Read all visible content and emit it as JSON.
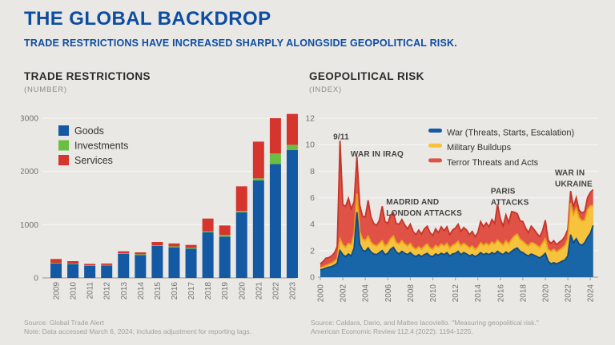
{
  "page": {
    "title": "THE GLOBAL BACKDROP",
    "subtitle": "TRADE RESTRICTIONS HAVE INCREASED SHARPLY ALONGSIDE GEOPOLITICAL RISK."
  },
  "colors": {
    "background": "#e9e8e5",
    "title_blue": "#0d4da1",
    "heading": "#2b2a28",
    "sublabel": "#8f8d89",
    "axis_text": "#75736f",
    "axis_line": "#a9a7a2",
    "gridline": "#f3f2ef",
    "legend_text": "#35332f",
    "annotation": "#45433f",
    "footer": "#a3a09b",
    "goods_blue": "#1459a3",
    "investments_green": "#6cbe42",
    "services_red": "#d5352d",
    "war_fill": "#1866a8",
    "war_stroke": "#0e4b84",
    "military_fill": "#f7c23c",
    "military_stroke": "#e8a41d",
    "terror_fill": "#e05146",
    "terror_stroke": "#c5352a"
  },
  "left_panel": {
    "heading": "TRADE RESTRICTIONS",
    "unit_label": "(NUMBER)",
    "source_line1": "Source: Global Trade Alert",
    "source_line2": "Note: Data accessed March 6, 2024; includes adjustment for reporting lags."
  },
  "right_panel": {
    "heading": "GEOPOLITICAL RISK",
    "unit_label": "(INDEX)",
    "source_line1": "Source: Caldara, Dario, and Matteo Iacoviello. \"Measuring geopolitical risk.\"",
    "source_line2": "American Economic Review 112.4 (2022): 1194-1225."
  },
  "chart_data": [
    {
      "type": "bar",
      "stacked": true,
      "title": "TRADE RESTRICTIONS",
      "xlabel": "",
      "ylabel": "NUMBER",
      "ylim": [
        0,
        3000
      ],
      "yticks": [
        0,
        1000,
        2000,
        3000
      ],
      "grid": true,
      "legend_position": "top-left",
      "categories": [
        "2009",
        "2010",
        "2011",
        "2012",
        "2013",
        "2014",
        "2015",
        "2016",
        "2017",
        "2018",
        "2019",
        "2020",
        "2021",
        "2022",
        "2023"
      ],
      "series": [
        {
          "name": "Goods",
          "color": "#1459a3",
          "values": [
            270,
            260,
            230,
            235,
            450,
            430,
            600,
            575,
            550,
            855,
            775,
            1230,
            1830,
            2140,
            2400
          ]
        },
        {
          "name": "Investments",
          "color": "#6cbe42",
          "values": [
            15,
            10,
            8,
            8,
            15,
            15,
            15,
            18,
            15,
            20,
            35,
            30,
            40,
            200,
            100
          ]
        },
        {
          "name": "Services",
          "color": "#d5352d",
          "values": [
            70,
            45,
            25,
            28,
            35,
            35,
            60,
            55,
            55,
            240,
            175,
            460,
            690,
            660,
            580
          ]
        }
      ]
    },
    {
      "type": "area",
      "stacked": true,
      "title": "GEOPOLITICAL RISK",
      "xlabel": "",
      "ylabel": "INDEX",
      "ylim": [
        0,
        12
      ],
      "yticks": [
        0,
        2,
        4,
        6,
        8,
        10,
        12
      ],
      "xticks": [
        2000,
        2002,
        2004,
        2006,
        2008,
        2010,
        2012,
        2014,
        2016,
        2018,
        2020,
        2022,
        2024
      ],
      "grid": true,
      "legend_position": "top-right",
      "x_range": {
        "start": 2000,
        "step": 0.25,
        "count": 98,
        "end": 2024.25
      },
      "series": [
        {
          "name": "War (Threats, Starts, Escalation)",
          "fill": "#1866a8",
          "stroke": "#0e4b84",
          "values": [
            0.55,
            0.6,
            0.68,
            0.75,
            0.8,
            0.9,
            1.05,
            2.0,
            1.7,
            1.55,
            1.75,
            1.6,
            2.2,
            4.9,
            2.5,
            2.05,
            1.95,
            2.2,
            1.9,
            1.75,
            1.7,
            1.85,
            2.0,
            1.7,
            1.8,
            2.1,
            2.25,
            1.9,
            1.75,
            1.95,
            1.8,
            1.7,
            1.85,
            1.65,
            1.55,
            1.7,
            1.55,
            1.7,
            1.8,
            1.6,
            1.55,
            1.75,
            1.65,
            1.8,
            1.7,
            1.85,
            1.6,
            1.75,
            1.8,
            1.95,
            1.7,
            1.85,
            1.75,
            1.6,
            1.7,
            1.55,
            1.65,
            1.85,
            1.7,
            1.8,
            1.7,
            1.85,
            1.75,
            1.95,
            1.8,
            1.7,
            1.9,
            1.75,
            1.95,
            2.1,
            2.2,
            1.95,
            1.85,
            1.7,
            1.6,
            1.75,
            1.65,
            1.55,
            1.45,
            1.6,
            1.8,
            1.2,
            1.0,
            1.1,
            1.0,
            1.1,
            1.2,
            1.3,
            1.6,
            3.2,
            2.6,
            2.9,
            2.5,
            2.4,
            2.6,
            3.0,
            3.3,
            3.9
          ]
        },
        {
          "name": "Military Buildups",
          "fill": "#f7c23c",
          "stroke": "#e8a41d",
          "values": [
            0.15,
            0.18,
            0.2,
            0.22,
            0.25,
            0.28,
            0.35,
            0.9,
            0.75,
            0.7,
            0.8,
            0.85,
            1.1,
            1.4,
            0.95,
            0.85,
            0.8,
            0.9,
            0.75,
            0.7,
            0.65,
            0.7,
            0.75,
            0.65,
            0.7,
            0.8,
            0.85,
            0.7,
            0.75,
            0.8,
            0.7,
            0.65,
            0.7,
            0.6,
            0.55,
            0.6,
            0.55,
            0.65,
            0.7,
            0.6,
            0.55,
            0.65,
            0.6,
            0.7,
            0.65,
            0.7,
            0.6,
            0.65,
            0.7,
            0.75,
            0.65,
            0.7,
            0.65,
            0.6,
            0.65,
            0.55,
            0.6,
            0.75,
            0.7,
            0.75,
            0.7,
            0.8,
            0.75,
            0.85,
            0.8,
            0.7,
            0.85,
            0.75,
            0.9,
            1.0,
            1.05,
            0.9,
            0.85,
            0.8,
            0.75,
            0.85,
            0.9,
            0.85,
            0.8,
            0.95,
            1.1,
            0.9,
            0.95,
            1.0,
            0.9,
            0.95,
            1.0,
            1.1,
            1.3,
            2.4,
            2.1,
            2.3,
            2.0,
            1.85,
            1.7,
            2.1,
            2.1,
            1.5
          ]
        },
        {
          "name": "Terror Threats and Acts",
          "fill": "#e05146",
          "stroke": "#c5352a",
          "values": [
            0.3,
            0.4,
            0.55,
            0.5,
            0.55,
            0.65,
            0.9,
            7.4,
            3.0,
            3.1,
            3.4,
            2.7,
            2.4,
            2.8,
            2.0,
            1.7,
            1.8,
            2.7,
            1.9,
            1.6,
            1.55,
            1.75,
            2.6,
            1.85,
            1.55,
            1.8,
            1.75,
            1.45,
            1.5,
            1.6,
            1.45,
            1.3,
            1.45,
            1.2,
            1.1,
            1.25,
            1.15,
            1.3,
            1.35,
            1.15,
            1.05,
            1.25,
            1.1,
            1.3,
            1.15,
            1.25,
            1.0,
            1.15,
            1.2,
            1.3,
            1.1,
            1.2,
            1.15,
            1.0,
            1.1,
            0.95,
            1.1,
            1.6,
            1.4,
            1.55,
            1.4,
            1.7,
            1.55,
            2.7,
            1.8,
            1.45,
            1.95,
            1.6,
            2.1,
            1.8,
            1.55,
            1.4,
            1.5,
            1.2,
            1.0,
            1.25,
            1.05,
            0.9,
            0.8,
            0.95,
            1.4,
            0.7,
            0.6,
            0.65,
            0.55,
            0.6,
            0.6,
            0.7,
            0.7,
            0.9,
            0.6,
            0.8,
            0.55,
            0.6,
            0.65,
            0.9,
            1.0,
            1.2
          ]
        }
      ],
      "annotations": [
        {
          "id": "9-11",
          "lines": [
            "9/11"
          ],
          "x_year": 2001.15,
          "y_value": 10.4
        },
        {
          "id": "war-in-iraq",
          "lines": [
            "WAR IN IRAQ"
          ],
          "x_year": 2002.7,
          "y_value": 9.1
        },
        {
          "id": "madrid-and-london-attacks",
          "lines": [
            "MADRID AND",
            "LONDON ATTACKS"
          ],
          "x_year": 2005.85,
          "y_value": 5.5
        },
        {
          "id": "paris-attacks",
          "lines": [
            "PARIS",
            "ATTACKS"
          ],
          "x_year": 2015.15,
          "y_value": 6.3
        },
        {
          "id": "war-in-ukraine",
          "lines": [
            "WAR IN",
            "UKRAINE"
          ],
          "x_year": 2020.85,
          "y_value": 7.7
        }
      ]
    }
  ]
}
